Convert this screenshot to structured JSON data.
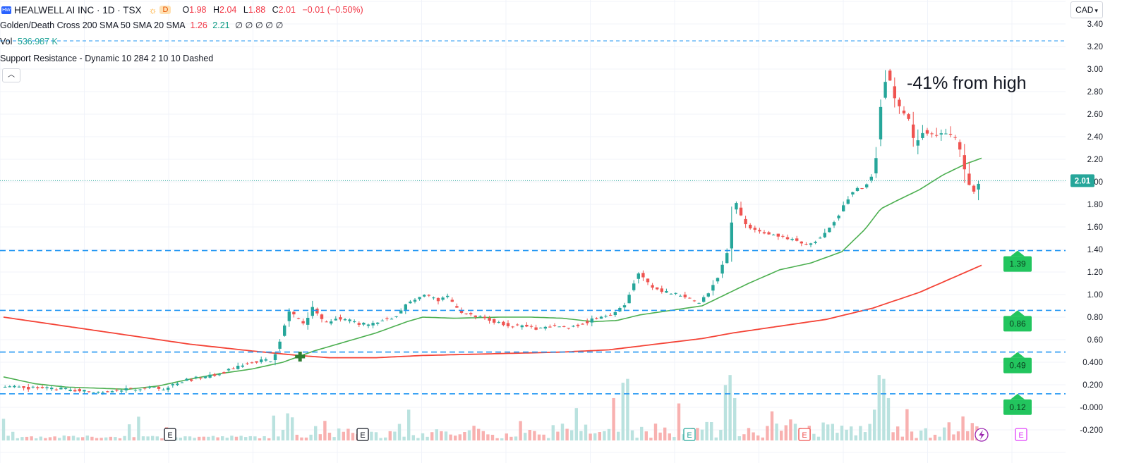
{
  "header": {
    "badge": "HW",
    "symbol_title": "HEALWELL AI INC · 1D · TSX",
    "session_badge": "D",
    "ohlc": {
      "o_label": "O",
      "o": "1.98",
      "h_label": "H",
      "h": "2.04",
      "l_label": "L",
      "l": "1.88",
      "c_label": "C",
      "c": "2.01",
      "change": "−0.01 (−0.50%)"
    }
  },
  "indicators": {
    "golden_cross": {
      "name": "Golden/Death Cross 200 SMA 50 SMA 20 SMA",
      "v1": "1.26",
      "v2": "2.21",
      "rest": "∅ ∅ ∅ ∅ ∅"
    },
    "vol": {
      "name": "Vol",
      "value": "536.987 K"
    },
    "support": {
      "name": "Support Resistance - Dynamic 10 284 2 10 10 Dashed"
    }
  },
  "currency_button": "CAD",
  "colors": {
    "up": "#26a69a",
    "down": "#ef5350",
    "sma50": "#4caf50",
    "sma200": "#f44336",
    "level": "#2196f3",
    "badge_green": "#22c55e",
    "price_tag": "#26a69a"
  },
  "chart_data": {
    "type": "candlestick",
    "annotation": "-41% from high",
    "last_price": "2.01",
    "y_axis": {
      "ticks": [
        "3.40",
        "3.20",
        "3.00",
        "2.80",
        "2.60",
        "2.40",
        "2.20",
        "2.00",
        "1.80",
        "1.60",
        "1.40",
        "1.20",
        "1.00",
        "0.80",
        "0.60",
        "0.400",
        "0.200",
        "-0.000",
        "-0.200"
      ],
      "ylim": [
        -0.25,
        3.45
      ]
    },
    "support_resistance_levels": [
      {
        "value": 1.39,
        "label": "1.39"
      },
      {
        "value": 0.86,
        "label": "0.86"
      },
      {
        "value": 0.49,
        "label": "0.49"
      },
      {
        "value": 0.12,
        "label": "0.12"
      }
    ],
    "resistance_top": 3.25,
    "earnings_markers": [
      "E",
      "E",
      "E",
      "E",
      "E"
    ],
    "close_anchors": [
      [
        0,
        0.19
      ],
      [
        20,
        0.17
      ],
      [
        40,
        0.16
      ],
      [
        55,
        0.14
      ],
      [
        68,
        0.13
      ],
      [
        80,
        0.16
      ],
      [
        92,
        0.17
      ],
      [
        105,
        0.17
      ],
      [
        115,
        0.23
      ],
      [
        130,
        0.27
      ],
      [
        145,
        0.32
      ],
      [
        160,
        0.4
      ],
      [
        175,
        0.42
      ],
      [
        185,
        0.85
      ],
      [
        195,
        0.74
      ],
      [
        200,
        0.88
      ],
      [
        208,
        0.74
      ],
      [
        215,
        0.8
      ],
      [
        225,
        0.76
      ],
      [
        235,
        0.73
      ],
      [
        245,
        0.77
      ],
      [
        255,
        0.82
      ],
      [
        262,
        0.93
      ],
      [
        272,
        0.99
      ],
      [
        280,
        0.95
      ],
      [
        287,
        0.98
      ],
      [
        295,
        0.84
      ],
      [
        305,
        0.81
      ],
      [
        315,
        0.77
      ],
      [
        325,
        0.73
      ],
      [
        335,
        0.72
      ],
      [
        345,
        0.7
      ],
      [
        355,
        0.72
      ],
      [
        365,
        0.7
      ],
      [
        375,
        0.75
      ],
      [
        385,
        0.8
      ],
      [
        395,
        0.84
      ],
      [
        402,
        0.92
      ],
      [
        410,
        1.2
      ],
      [
        418,
        1.08
      ],
      [
        428,
        1.02
      ],
      [
        440,
        0.99
      ],
      [
        448,
        0.92
      ],
      [
        455,
        1.0
      ],
      [
        462,
        1.18
      ],
      [
        468,
        1.4
      ],
      [
        472,
        1.86
      ],
      [
        478,
        1.62
      ],
      [
        488,
        1.56
      ],
      [
        500,
        1.52
      ],
      [
        512,
        1.48
      ],
      [
        520,
        1.44
      ],
      [
        528,
        1.52
      ],
      [
        535,
        1.62
      ],
      [
        542,
        1.78
      ],
      [
        548,
        1.92
      ],
      [
        555,
        1.95
      ],
      [
        562,
        2.08
      ],
      [
        566,
        2.66
      ],
      [
        570,
        2.98
      ],
      [
        575,
        2.75
      ],
      [
        580,
        2.62
      ],
      [
        584,
        2.55
      ],
      [
        588,
        2.33
      ],
      [
        594,
        2.45
      ],
      [
        600,
        2.42
      ],
      [
        608,
        2.43
      ],
      [
        614,
        2.38
      ],
      [
        618,
        2.25
      ],
      [
        622,
        2.0
      ],
      [
        626,
        1.92
      ],
      [
        630,
        2.01
      ]
    ],
    "sma50_anchors": [
      [
        0,
        0.27
      ],
      [
        20,
        0.21
      ],
      [
        40,
        0.18
      ],
      [
        60,
        0.17
      ],
      [
        80,
        0.16
      ],
      [
        100,
        0.19
      ],
      [
        120,
        0.25
      ],
      [
        140,
        0.3
      ],
      [
        160,
        0.34
      ],
      [
        180,
        0.4
      ],
      [
        200,
        0.5
      ],
      [
        220,
        0.58
      ],
      [
        240,
        0.66
      ],
      [
        260,
        0.76
      ],
      [
        270,
        0.8
      ],
      [
        290,
        0.79
      ],
      [
        320,
        0.8
      ],
      [
        340,
        0.8
      ],
      [
        360,
        0.79
      ],
      [
        380,
        0.76
      ],
      [
        395,
        0.77
      ],
      [
        410,
        0.82
      ],
      [
        430,
        0.86
      ],
      [
        450,
        0.9
      ],
      [
        465,
        1.0
      ],
      [
        480,
        1.1
      ],
      [
        500,
        1.22
      ],
      [
        520,
        1.28
      ],
      [
        540,
        1.38
      ],
      [
        555,
        1.58
      ],
      [
        565,
        1.76
      ],
      [
        575,
        1.83
      ],
      [
        590,
        1.93
      ],
      [
        605,
        2.06
      ],
      [
        620,
        2.16
      ],
      [
        630,
        2.21
      ]
    ],
    "sma200_anchors": [
      [
        0,
        0.8
      ],
      [
        40,
        0.72
      ],
      [
        80,
        0.64
      ],
      [
        120,
        0.56
      ],
      [
        160,
        0.5
      ],
      [
        190,
        0.46
      ],
      [
        210,
        0.44
      ],
      [
        240,
        0.44
      ],
      [
        270,
        0.46
      ],
      [
        300,
        0.47
      ],
      [
        330,
        0.48
      ],
      [
        360,
        0.49
      ],
      [
        390,
        0.51
      ],
      [
        420,
        0.56
      ],
      [
        450,
        0.61
      ],
      [
        470,
        0.66
      ],
      [
        500,
        0.72
      ],
      [
        530,
        0.78
      ],
      [
        560,
        0.88
      ],
      [
        590,
        1.02
      ],
      [
        610,
        1.14
      ],
      [
        630,
        1.26
      ]
    ],
    "volume_spikes": [
      [
        185,
        30
      ],
      [
        262,
        40
      ],
      [
        370,
        42
      ],
      [
        392,
        55
      ],
      [
        398,
        75
      ],
      [
        401,
        80
      ],
      [
        465,
        72
      ],
      [
        468,
        85
      ],
      [
        472,
        55
      ],
      [
        560,
        40
      ],
      [
        563,
        85
      ],
      [
        566,
        80
      ],
      [
        570,
        55
      ]
    ],
    "golden_cross_marker": {
      "index": 191,
      "value": 0.45
    }
  }
}
